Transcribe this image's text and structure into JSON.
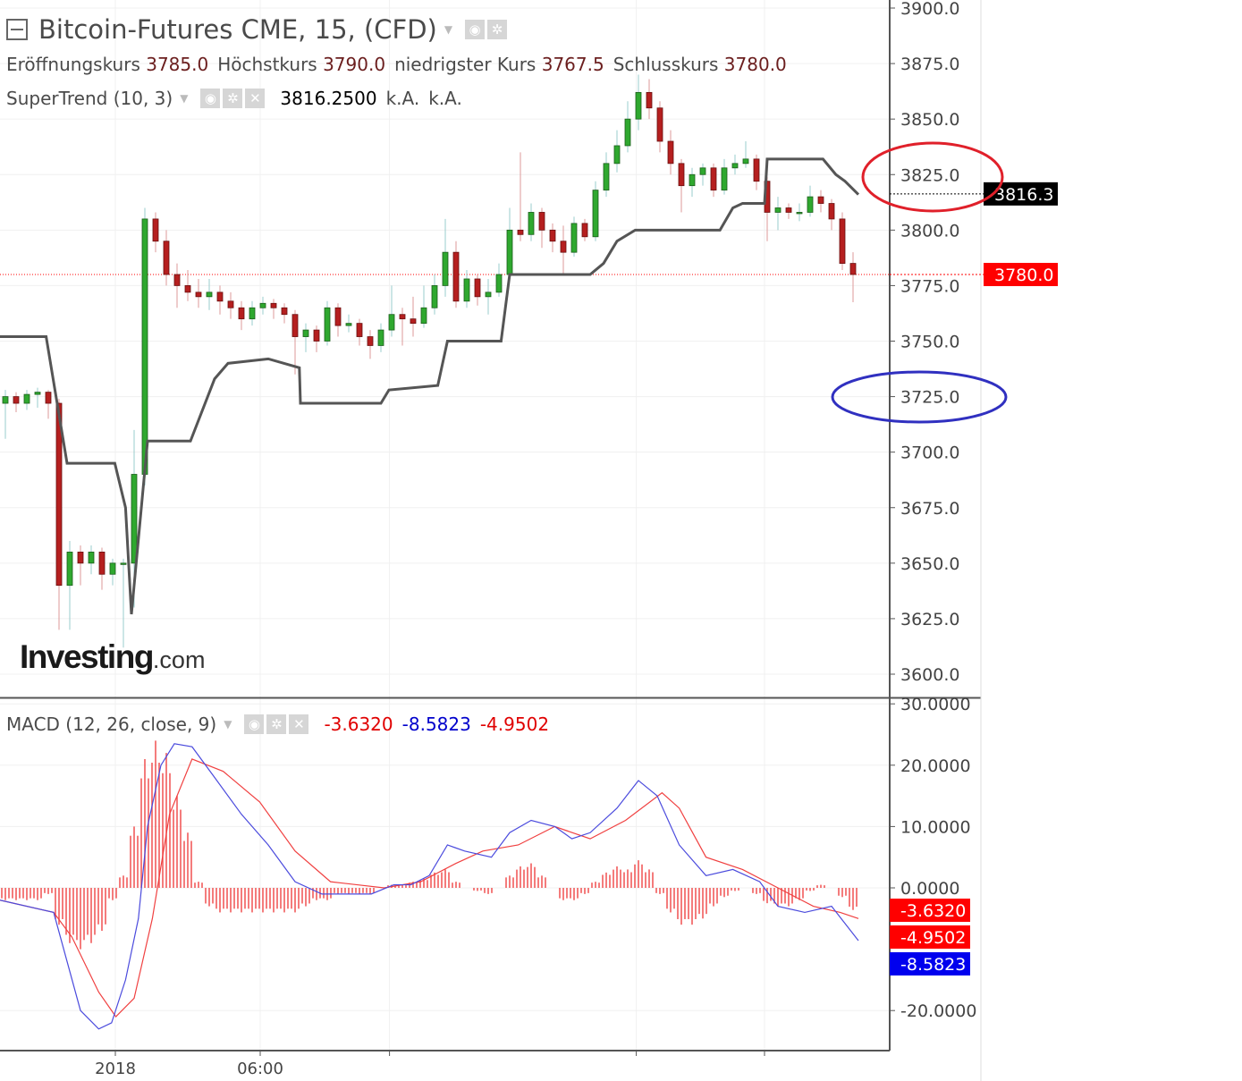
{
  "header": {
    "title": "Bitcoin-Futures CME, 15, (CFD)",
    "ohlc": [
      {
        "label": "Eröffnungskurs",
        "value": "3785.0"
      },
      {
        "label": "Höchstkurs",
        "value": "3790.0"
      },
      {
        "label": "niedrigster Kurs",
        "value": "3767.5"
      },
      {
        "label": "Schlusskurs",
        "value": "3780.0"
      }
    ]
  },
  "supertrend": {
    "label": "SuperTrend (10, 3)",
    "value": "3816.2500",
    "v2": "k.A.",
    "v3": "k.A."
  },
  "macd": {
    "label": "MACD (12, 26, close, 9)",
    "v1": "-3.6320",
    "v2": "-8.5823",
    "v3": "-4.9502"
  },
  "logo": "Investing.com",
  "colors": {
    "up": "#2fa82f",
    "down": "#b51f1f",
    "supertrend": "#555555",
    "macd": "#4b4bdd",
    "signal": "#f04040",
    "hist": "#f05050",
    "last_price": "#ff0000",
    "annot_red": "#e0202a",
    "annot_blue": "#3030c0"
  },
  "chart_data": [
    {
      "type": "candlestick",
      "ylim": [
        3600,
        3900
      ],
      "yticks": [
        "3900.0",
        "3875.0",
        "3850.0",
        "3825.0",
        "3800.0",
        "3775.0",
        "3750.0",
        "3725.0",
        "3700.0",
        "3675.0",
        "3650.0",
        "3625.0",
        "3600.0"
      ],
      "ytick_values": [
        3900,
        3875,
        3850,
        3825,
        3800,
        3775,
        3750,
        3725,
        3700,
        3675,
        3650,
        3625,
        3600
      ],
      "xticks": [
        {
          "i": 10.25,
          "label": "2018"
        },
        {
          "i": 23.75,
          "label": "06:00"
        },
        {
          "i": 35.8,
          "label": ""
        },
        {
          "i": 58.8,
          "label": ""
        },
        {
          "i": 70.75,
          "label": ""
        }
      ],
      "last_price": {
        "value": 3780.0,
        "label": "3780.0"
      },
      "supertrend_label": {
        "value": 3816.3,
        "label": "3816.3"
      },
      "candles": [
        [
          3722,
          3728,
          3706,
          3725
        ],
        [
          3725,
          3727,
          3718,
          3722
        ],
        [
          3722,
          3728,
          3719,
          3726
        ],
        [
          3726,
          3729,
          3720,
          3727
        ],
        [
          3727,
          3728,
          3715,
          3722
        ],
        [
          3722,
          3724,
          3620,
          3640
        ],
        [
          3640,
          3660,
          3620,
          3655
        ],
        [
          3655,
          3658,
          3640,
          3650
        ],
        [
          3650,
          3658,
          3645,
          3655
        ],
        [
          3655,
          3657,
          3638,
          3645
        ],
        [
          3645,
          3652,
          3640,
          3650
        ],
        [
          3650,
          3652,
          3612,
          3650
        ],
        [
          3650,
          3710,
          3630,
          3690
        ],
        [
          3690,
          3810,
          3685,
          3805
        ],
        [
          3805,
          3808,
          3790,
          3795
        ],
        [
          3795,
          3800,
          3775,
          3780
        ],
        [
          3780,
          3785,
          3765,
          3775
        ],
        [
          3775,
          3782,
          3768,
          3772
        ],
        [
          3772,
          3778,
          3765,
          3770
        ],
        [
          3770,
          3778,
          3764,
          3772
        ],
        [
          3772,
          3775,
          3762,
          3768
        ],
        [
          3768,
          3772,
          3760,
          3765
        ],
        [
          3765,
          3768,
          3755,
          3760
        ],
        [
          3760,
          3768,
          3757,
          3765
        ],
        [
          3765,
          3770,
          3762,
          3767
        ],
        [
          3767,
          3769,
          3760,
          3765
        ],
        [
          3765,
          3767,
          3758,
          3762
        ],
        [
          3762,
          3764,
          3735,
          3752
        ],
        [
          3752,
          3758,
          3745,
          3755
        ],
        [
          3755,
          3757,
          3745,
          3750
        ],
        [
          3750,
          3768,
          3748,
          3765
        ],
        [
          3765,
          3767,
          3752,
          3757
        ],
        [
          3757,
          3762,
          3754,
          3758
        ],
        [
          3758,
          3760,
          3748,
          3752
        ],
        [
          3752,
          3755,
          3742,
          3748
        ],
        [
          3748,
          3758,
          3745,
          3755
        ],
        [
          3755,
          3775,
          3752,
          3762
        ],
        [
          3762,
          3765,
          3748,
          3760
        ],
        [
          3760,
          3770,
          3752,
          3758
        ],
        [
          3758,
          3775,
          3756,
          3765
        ],
        [
          3765,
          3780,
          3762,
          3775
        ],
        [
          3775,
          3805,
          3770,
          3790
        ],
        [
          3790,
          3795,
          3765,
          3768
        ],
        [
          3768,
          3782,
          3765,
          3778
        ],
        [
          3778,
          3780,
          3766,
          3770
        ],
        [
          3770,
          3778,
          3762,
          3772
        ],
        [
          3772,
          3785,
          3770,
          3780
        ],
        [
          3780,
          3810,
          3778,
          3800
        ],
        [
          3800,
          3835,
          3795,
          3798
        ],
        [
          3798,
          3812,
          3795,
          3808
        ],
        [
          3808,
          3810,
          3792,
          3800
        ],
        [
          3800,
          3803,
          3790,
          3795
        ],
        [
          3795,
          3802,
          3780,
          3790
        ],
        [
          3790,
          3806,
          3788,
          3803
        ],
        [
          3803,
          3805,
          3795,
          3797
        ],
        [
          3797,
          3822,
          3795,
          3818
        ],
        [
          3818,
          3835,
          3815,
          3830
        ],
        [
          3830,
          3845,
          3826,
          3838
        ],
        [
          3838,
          3858,
          3835,
          3850
        ],
        [
          3850,
          3870,
          3845,
          3862
        ],
        [
          3862,
          3868,
          3850,
          3855
        ],
        [
          3855,
          3858,
          3835,
          3840
        ],
        [
          3840,
          3845,
          3825,
          3830
        ],
        [
          3830,
          3832,
          3808,
          3820
        ],
        [
          3820,
          3828,
          3815,
          3825
        ],
        [
          3825,
          3830,
          3820,
          3828
        ],
        [
          3828,
          3830,
          3815,
          3818
        ],
        [
          3818,
          3832,
          3816,
          3828
        ],
        [
          3828,
          3834,
          3825,
          3830
        ],
        [
          3830,
          3840,
          3828,
          3832
        ],
        [
          3832,
          3834,
          3818,
          3822
        ],
        [
          3822,
          3824,
          3795,
          3808
        ],
        [
          3808,
          3815,
          3800,
          3810
        ],
        [
          3810,
          3812,
          3805,
          3808
        ],
        [
          3808,
          3812,
          3804,
          3808
        ],
        [
          3808,
          3820,
          3806,
          3815
        ],
        [
          3815,
          3818,
          3808,
          3812
        ],
        [
          3812,
          3814,
          3800,
          3805
        ],
        [
          3805,
          3808,
          3782,
          3785
        ],
        [
          3785,
          3790,
          3767.5,
          3780
        ]
      ],
      "supertrend": [
        [
          -0.5,
          3752
        ],
        [
          3.8,
          3752
        ],
        [
          5.75,
          3695
        ],
        [
          10.2,
          3695
        ],
        [
          11.2,
          3675
        ],
        [
          11.75,
          3627
        ],
        [
          13.25,
          3705
        ],
        [
          17.25,
          3705
        ],
        [
          19.5,
          3733
        ],
        [
          20.75,
          3740
        ],
        [
          24.5,
          3742
        ],
        [
          27.4,
          3738
        ],
        [
          27.5,
          3722
        ],
        [
          35,
          3722
        ],
        [
          35.75,
          3728
        ],
        [
          40.3,
          3730
        ],
        [
          41.2,
          3750
        ],
        [
          46.2,
          3750
        ],
        [
          47,
          3780
        ],
        [
          54.5,
          3780
        ],
        [
          55.75,
          3785
        ],
        [
          57,
          3795
        ],
        [
          58.7,
          3800
        ],
        [
          66.6,
          3800
        ],
        [
          67.8,
          3810
        ],
        [
          68.7,
          3812
        ],
        [
          70.75,
          3812
        ],
        [
          71,
          3832
        ],
        [
          76.2,
          3832
        ],
        [
          77.4,
          3825
        ],
        [
          78.25,
          3822
        ],
        [
          79.5,
          3816
        ]
      ]
    },
    {
      "type": "line",
      "ylim": [
        -25,
        30
      ],
      "yticks": [
        "30.0000",
        "20.0000",
        "10.0000",
        "0.0000",
        "-20.0000"
      ],
      "ytick_values": [
        30,
        20,
        10,
        0,
        -20
      ],
      "value_labels": [
        {
          "value": -3.632,
          "label": "-3.6320",
          "series": "hist"
        },
        {
          "value": -4.9502,
          "label": "-4.9502",
          "series": "signal"
        },
        {
          "value": -8.5823,
          "label": "-8.5823",
          "series": "macd"
        }
      ],
      "hist": [
        -2,
        -2,
        -2,
        -2,
        -1,
        -6,
        -9,
        -10,
        -9,
        -7,
        -2,
        2,
        10,
        21,
        24,
        22,
        15,
        9,
        1,
        -3,
        -4,
        -4,
        -4,
        -4,
        -4,
        -4,
        -4,
        -4,
        -3,
        -2,
        -2,
        -1,
        -1,
        -1,
        -1,
        0,
        0.5,
        0.5,
        1,
        1.5,
        2.5,
        3,
        1,
        0,
        -0.5,
        -1,
        0,
        2,
        3.5,
        4,
        2,
        0,
        -2,
        -2,
        -1,
        1,
        2.5,
        3.5,
        3,
        4.5,
        3,
        -1,
        -4,
        -6,
        -6,
        -5,
        -3,
        -1.5,
        -0.5,
        0,
        -1,
        -2.5,
        -3,
        -3,
        -2,
        -0.5,
        0.5,
        0,
        -1.5,
        -3.6
      ],
      "macd": [
        [
          -0.5,
          -2
        ],
        [
          4.5,
          -4
        ],
        [
          5.75,
          -12
        ],
        [
          7,
          -20
        ],
        [
          8.7,
          -23
        ],
        [
          9.9,
          -22
        ],
        [
          11.2,
          -15
        ],
        [
          12.4,
          -5
        ],
        [
          13.25,
          10
        ],
        [
          14.5,
          20
        ],
        [
          15.75,
          23.5
        ],
        [
          17.4,
          23
        ],
        [
          19.5,
          18
        ],
        [
          22,
          12
        ],
        [
          24.5,
          7
        ],
        [
          27,
          1
        ],
        [
          29.5,
          -1
        ],
        [
          32,
          -1
        ],
        [
          34.1,
          -1
        ],
        [
          36.2,
          0.5
        ],
        [
          37.8,
          0.5
        ],
        [
          39.5,
          2
        ],
        [
          41.2,
          7
        ],
        [
          42.8,
          6
        ],
        [
          45.3,
          5
        ],
        [
          47,
          9
        ],
        [
          49,
          11
        ],
        [
          51.2,
          10
        ],
        [
          52.8,
          8
        ],
        [
          54.5,
          9
        ],
        [
          57,
          13
        ],
        [
          59,
          17.5
        ],
        [
          60.75,
          15
        ],
        [
          62.8,
          7
        ],
        [
          65.3,
          2
        ],
        [
          67.8,
          3
        ],
        [
          70.3,
          1
        ],
        [
          72,
          -3
        ],
        [
          74.5,
          -4
        ],
        [
          77,
          -3
        ],
        [
          79.5,
          -8.6
        ]
      ],
      "signal": [
        [
          -0.5,
          -2
        ],
        [
          4.5,
          -4
        ],
        [
          6.2,
          -8
        ],
        [
          8.7,
          -17
        ],
        [
          10.3,
          -21
        ],
        [
          12,
          -18
        ],
        [
          13.7,
          -5
        ],
        [
          15.3,
          12
        ],
        [
          17.4,
          21
        ],
        [
          20.3,
          19
        ],
        [
          23.7,
          14
        ],
        [
          27,
          6
        ],
        [
          30.3,
          1
        ],
        [
          32.8,
          0.5
        ],
        [
          35.3,
          0
        ],
        [
          38.7,
          1
        ],
        [
          42,
          4
        ],
        [
          44.5,
          6
        ],
        [
          47.8,
          7
        ],
        [
          51.2,
          10
        ],
        [
          54.5,
          8
        ],
        [
          57.8,
          11
        ],
        [
          61.2,
          15.5
        ],
        [
          62.8,
          13
        ],
        [
          65.3,
          5
        ],
        [
          68.7,
          3
        ],
        [
          72,
          0
        ],
        [
          75.3,
          -3
        ],
        [
          77.8,
          -4
        ],
        [
          79.5,
          -5
        ]
      ]
    }
  ]
}
